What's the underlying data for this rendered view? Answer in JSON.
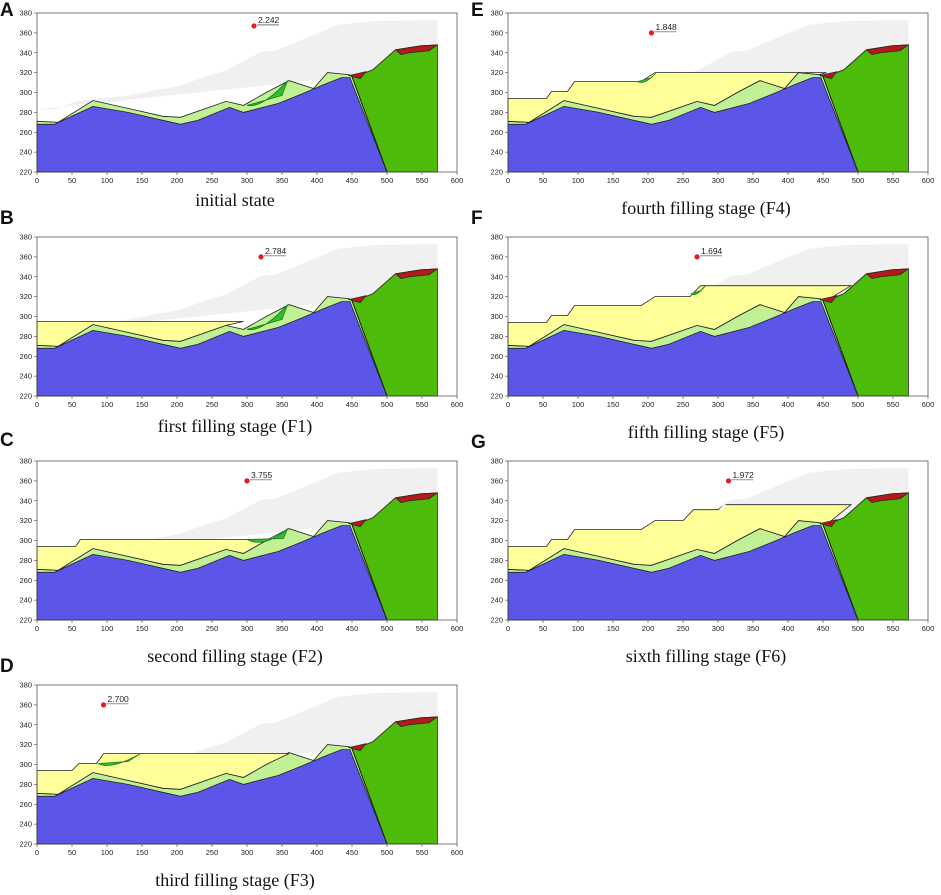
{
  "figure": {
    "x_ticks": [
      "0",
      "50",
      "100",
      "150",
      "200",
      "250",
      "300",
      "350",
      "400",
      "450",
      "500",
      "550",
      "600"
    ],
    "y_ticks": [
      "220",
      "240",
      "260",
      "280",
      "300",
      "320",
      "340",
      "360",
      "380"
    ],
    "x_range": [
      0,
      600
    ],
    "y_range": [
      220,
      380
    ],
    "colors": {
      "bedrock": "#5b56e8",
      "soil": "#c2f095",
      "fill": "#ffff99",
      "rock_right": "#4cbb0a",
      "red_cap": "#b01a1a",
      "slip": "#2fbf2f",
      "sky": "#f0f0f0",
      "critical_point": "#e02020"
    }
  },
  "panels": [
    {
      "label": "A",
      "caption": "initial state",
      "fos": "2.242"
    },
    {
      "label": "B",
      "caption": "first filling stage (F1)",
      "fos": "2.784"
    },
    {
      "label": "C",
      "caption": "second filling stage (F2)",
      "fos": "3.755"
    },
    {
      "label": "D",
      "caption": "third filling stage (F3)",
      "fos": "2.700"
    },
    {
      "label": "E",
      "caption": "fourth filling stage (F4)",
      "fos": "1.848"
    },
    {
      "label": "F",
      "caption": "fifth filling stage (F5)",
      "fos": "1.694"
    },
    {
      "label": "G",
      "caption": "sixth filling stage (F6)",
      "fos": "1.972"
    }
  ]
}
